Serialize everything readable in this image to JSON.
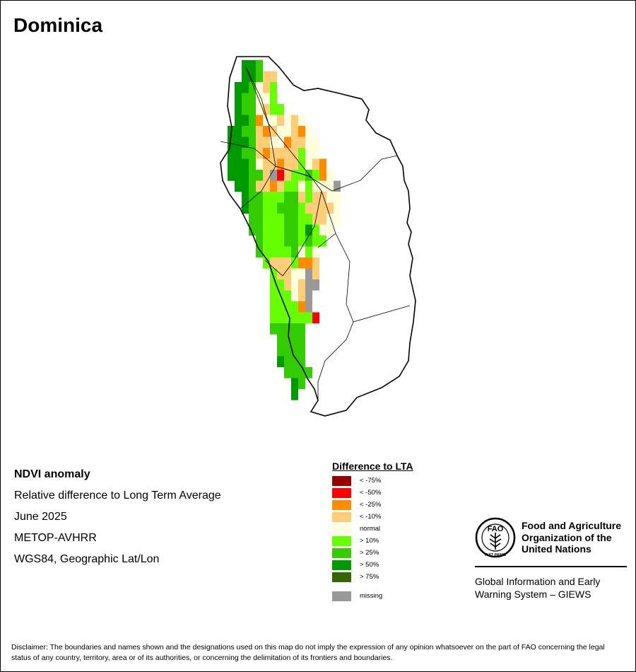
{
  "map": {
    "title": "Dominica",
    "info": {
      "product": "NDVI anomaly",
      "description": "Relative difference to Long Term Average",
      "period": "June 2025",
      "sensor": "METOP-AVHRR",
      "projection": "WGS84, Geographic Lat/Lon"
    }
  },
  "legend": {
    "title": "Difference to LTA",
    "items": [
      {
        "label": "< -75%",
        "color": "#990000"
      },
      {
        "label": "< -50%",
        "color": "#ff0000"
      },
      {
        "label": "< -25%",
        "color": "#ff8c00"
      },
      {
        "label": "< -10%",
        "color": "#ffcc77"
      },
      {
        "label": "normal",
        "color": "#ffffdd"
      },
      {
        "label": "> 10%",
        "color": "#66ff00"
      },
      {
        "label": "> 25%",
        "color": "#33cc00"
      },
      {
        "label": "> 50%",
        "color": "#009900"
      },
      {
        "label": "> 75%",
        "color": "#336600"
      }
    ],
    "missing": {
      "label": "missing",
      "color": "#999999"
    }
  },
  "branding": {
    "org_name": [
      "Food and Agriculture",
      "Organization of the",
      "United Nations"
    ],
    "logo_text": "FAO",
    "logo_ring_text": "FIAT PANIS",
    "system_name": [
      "Global Information and Early",
      "Warning System – GIEWS"
    ]
  },
  "disclaimer": "Disclaimer: The boundaries and names shown and the designations used on this map do not imply the expression of any opinion whatsoever on the part of FAO concerning the legal status of any country, territory, area or of its authorities, or concerning the delimitation of its frontiers and boundaries."
}
